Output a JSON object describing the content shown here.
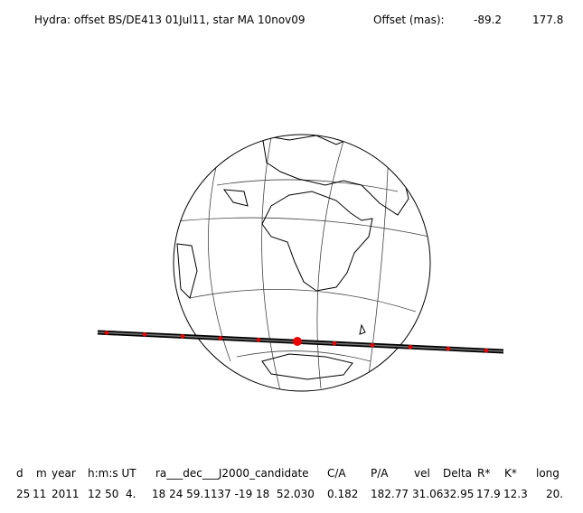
{
  "header": {
    "title": "Hydra: offset BS/DE413 01Jul11, star MA 10nov09",
    "offset_label": "Offset (mas):",
    "offset_ra": "-89.2",
    "offset_dec": "177.8"
  },
  "table": {
    "columns": [
      "d",
      "m",
      "year",
      "h:m:s UT",
      "ra___dec___J2000_candidate",
      "C/A",
      "P/A",
      "vel",
      "Delta",
      "R*",
      "K*",
      "long"
    ],
    "row": [
      "25",
      "11",
      "2011",
      "12 50  4.",
      "18 24 59.1137 -19 18  52.030",
      "0.182",
      "182.77",
      "31.06",
      "32.95",
      "17.9",
      "12.3",
      "20."
    ]
  }
}
